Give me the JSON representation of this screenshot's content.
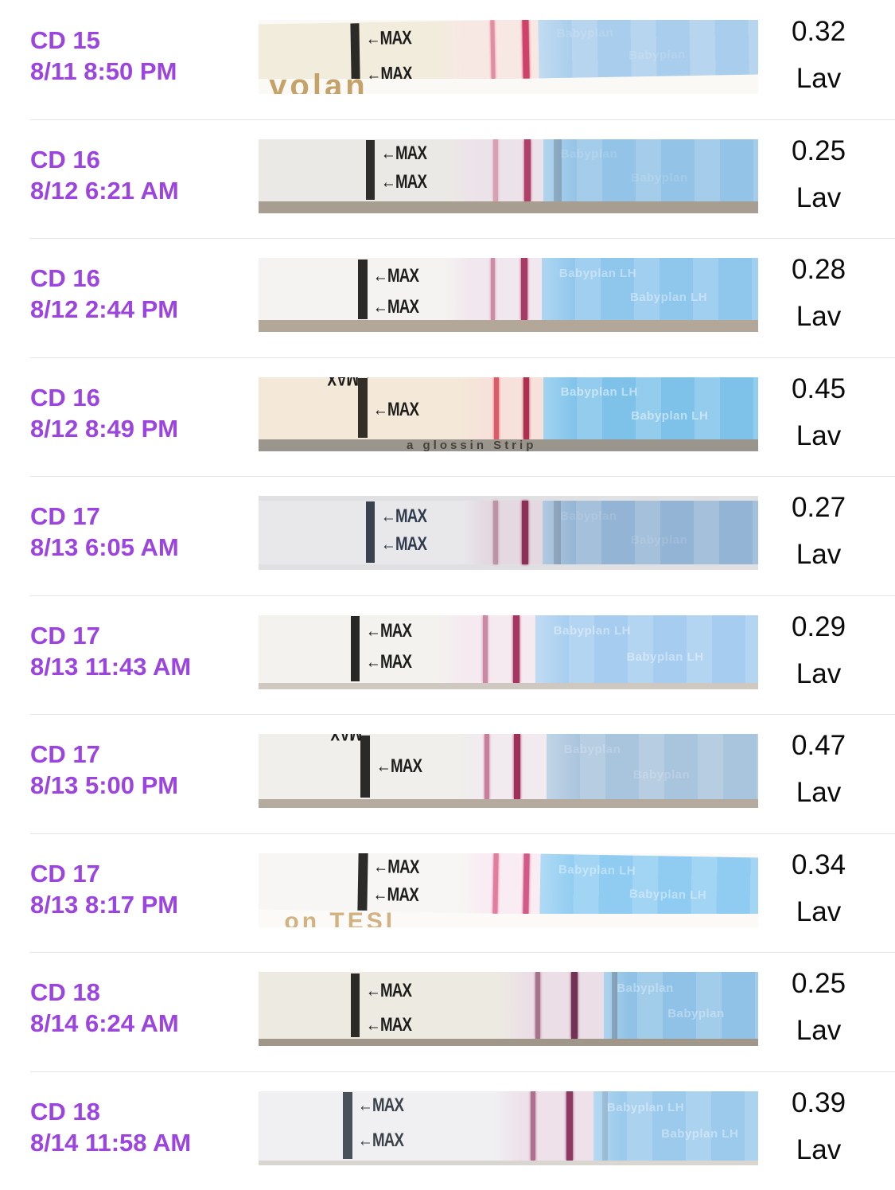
{
  "colors": {
    "accent_purple": "#9c44e0",
    "value_text": "#0b0b0b",
    "divider": "#e4e4e6",
    "background": "#ffffff"
  },
  "rows": [
    {
      "cycle_day": "CD 15",
      "datetime": "8/11 8:50 PM",
      "value": "0.32",
      "unit": "Lav",
      "strip": {
        "body": "#f2ecdd",
        "bar": "#2b2a26",
        "bar_x": "19%",
        "membrane": "#f8e8e4",
        "membrane_x": "36%",
        "test_x": "46.5%",
        "test_color": "#e28da1",
        "ctrl_x": "52.8%",
        "ctrl_color": "#ce4168",
        "blue_x": "56%",
        "blue": "#a9cdec",
        "photo_bg": "#faf9f6",
        "strip_h": "80%",
        "band": "#faf9f6",
        "band_text": "volan",
        "band_text_color": "#c5a268",
        "band_text_size": "40px",
        "band_text_left": "3%",
        "band_text_bottom": "-8px",
        "tilt": "-1deg",
        "max_top": "12%",
        "max_bot": "72%",
        "max_label": "←MAX",
        "blue_text": "Babyplan",
        "blue_text_opacity": "0.15",
        "smudge_opacity": "0"
      }
    },
    {
      "cycle_day": "CD 16",
      "datetime": "8/12 6:21 AM",
      "value": "0.25",
      "unit": "Lav",
      "strip": {
        "body": "#ebe9e5",
        "bar": "#2e2d2b",
        "bar_x": "22%",
        "membrane": "#ece3ea",
        "membrane_x": "38%",
        "test_x": "47%",
        "test_color": "#d9a0b4",
        "ctrl_x": "53.2%",
        "ctrl_color": "#b03f68",
        "blue_x": "56.8%",
        "blue": "#93c3e6",
        "photo_bg": "#efede9",
        "strip_h": "84%",
        "band": "#a79d90",
        "tilt": "0deg",
        "max_top": "8%",
        "max_bot": "54%",
        "max_label": "←MAX",
        "blue_text": "Babyplan",
        "blue_text_opacity": "0.15",
        "smudge_opacity": "0.35"
      }
    },
    {
      "cycle_day": "CD 16",
      "datetime": "8/12 2:44 PM",
      "value": "0.28",
      "unit": "Lav",
      "strip": {
        "body": "#f5f3f1",
        "bar": "#2b2a28",
        "bar_x": "20.5%",
        "membrane": "#f1e7ee",
        "membrane_x": "37%",
        "test_x": "46.5%",
        "test_color": "#cf8aa4",
        "ctrl_x": "52.5%",
        "ctrl_color": "#a83a66",
        "blue_x": "56.5%",
        "blue": "#8fc6ec",
        "photo_bg": "#f4f2ef",
        "strip_h": "84%",
        "band": "#b3a79a",
        "tilt": "0deg",
        "max_top": "14%",
        "max_bot": "64%",
        "max_label": "←MAX",
        "blue_text": "Babyplan LH",
        "blue_text_opacity": "0.4",
        "smudge_opacity": "0"
      }
    },
    {
      "cycle_day": "CD 16",
      "datetime": "8/12 8:49 PM",
      "value": "0.45",
      "unit": "Lav",
      "strip": {
        "body": "#f4e9d8",
        "bar": "#332f28",
        "bar_x": "20.5%",
        "membrane": "#f6e2da",
        "membrane_x": "40%",
        "test_x": "47.2%",
        "test_color": "#dd5a68",
        "ctrl_x": "52.9%",
        "ctrl_color": "#ae2f50",
        "blue_x": "56.8%",
        "blue": "#7ec2ea",
        "photo_bg": "#f1e6d6",
        "strip_h": "84%",
        "band": "#9a968e",
        "band_text": "a glossin      Strip",
        "band_text_color": "#46433c",
        "band_text_size": "15px",
        "band_text_left": "30%",
        "band_text_bottom": "2px",
        "tilt": "0deg",
        "max_top": "-14%",
        "max_bot": "38%",
        "max_flip_top": true,
        "max_label": "←MAX",
        "blue_text": "Babyplan LH",
        "blue_text_opacity": "0.5",
        "smudge_opacity": "0"
      }
    },
    {
      "cycle_day": "CD 17",
      "datetime": "8/13 6:05 AM",
      "value": "0.27",
      "unit": "Lav",
      "strip": {
        "body": "#e8e8eb",
        "bar": "#39414f",
        "bar_x": "22%",
        "membrane": "#e4d9e1",
        "membrane_x": "41%",
        "test_x": "47%",
        "test_color": "#bd93a6",
        "ctrl_x": "52.7%",
        "ctrl_color": "#8c3058",
        "blue_x": "56.7%",
        "blue": "#93b4d4",
        "photo_bg": "#e0e0e3",
        "strip_top": "6%",
        "strip_h": "86%",
        "tilt": "0deg",
        "max_top": "10%",
        "max_bot": "54%",
        "max_color": "#2f3a4d",
        "max_label": "←MAX",
        "blue_text": "Babyplan",
        "blue_text_opacity": "0.12",
        "smudge_opacity": "0.3"
      }
    },
    {
      "cycle_day": "CD 17",
      "datetime": "8/13 11:43 AM",
      "value": "0.29",
      "unit": "Lav",
      "strip": {
        "body": "#f3f2ef",
        "bar": "#272725",
        "bar_x": "19%",
        "membrane": "#f4eaf0",
        "membrane_x": "36%",
        "test_x": "45%",
        "test_color": "#ca88a2",
        "ctrl_x": "51%",
        "ctrl_color": "#a63562",
        "blue_x": "55.3%",
        "blue": "#a6cdef",
        "photo_bg": "#eae7e2",
        "strip_h": "92%",
        "band": "#cfc8c0",
        "tilt": "0deg",
        "max_top": "10%",
        "max_bot": "56%",
        "max_label": "←MAX",
        "blue_text": "Babyplan LH",
        "blue_text_opacity": "0.4",
        "smudge_opacity": "0"
      }
    },
    {
      "cycle_day": "CD 17",
      "datetime": "8/13 5:00 PM",
      "value": "0.47",
      "unit": "Lav",
      "strip": {
        "body": "#f0efec",
        "bar": "#2a2a28",
        "bar_x": "21%",
        "membrane": "#f1ebf0",
        "membrane_x": "40%",
        "test_x": "45.3%",
        "test_color": "#c67e9b",
        "ctrl_x": "51.1%",
        "ctrl_color": "#9e3058",
        "blue_x": "57.5%",
        "blue": "#a9c4dd",
        "photo_bg": "#efedea",
        "strip_h": "88%",
        "band": "#b4aa9d",
        "tilt": "0deg",
        "max_top": "-16%",
        "max_bot": "36%",
        "max_flip_top": true,
        "max_label": "←MAX",
        "blue_text": "Babyplan",
        "blue_text_opacity": "0.2",
        "smudge_opacity": "0"
      }
    },
    {
      "cycle_day": "CD 17",
      "datetime": "8/13 8:17 PM",
      "value": "0.34",
      "unit": "Lav",
      "strip": {
        "body": "#f7f6f4",
        "bar": "#2c2b29",
        "bar_x": "20.5%",
        "membrane": "#f9edf3",
        "membrane_x": "40%",
        "test_x": "47%",
        "test_color": "#e27d9e",
        "ctrl_x": "52.9%",
        "ctrl_color": "#d15a88",
        "blue_x": "56.3%",
        "blue": "#90ccf1",
        "photo_bg": "#fbfaf8",
        "strip_h": "82%",
        "band": "#fbfaf8",
        "band_text": "on TESI",
        "band_text_color": "#d3b282",
        "band_text_size": "30px",
        "band_text_left": "6%",
        "band_text_bottom": "-6px",
        "tilt": "1deg",
        "max_top": "10%",
        "max_bot": "56%",
        "max_label": "←MAX",
        "blue_text": "Babyplan LH",
        "blue_text_opacity": "0.4",
        "smudge_opacity": "0"
      }
    },
    {
      "cycle_day": "CD 18",
      "datetime": "8/14 6:24 AM",
      "value": "0.25",
      "unit": "Lav",
      "strip": {
        "body": "#edeae2",
        "bar": "#2b2a27",
        "bar_x": "19%",
        "membrane": "#ebdee7",
        "membrane_x": "48%",
        "test_x": "55.3%",
        "test_color": "#a8728d",
        "ctrl_x": "62.4%",
        "ctrl_color": "#743156",
        "blue_x": "68.8%",
        "blue": "#8fc2e6",
        "photo_bg": "#eceade",
        "strip_h": "90%",
        "band": "#a1968a",
        "tilt": "0deg",
        "max_top": "14%",
        "max_bot": "66%",
        "max_label": "←MAX",
        "blue_text": "Babyplan",
        "blue_text_opacity": "0.35",
        "smudge_opacity": "0.4"
      }
    },
    {
      "cycle_day": "CD 18",
      "datetime": "8/14 11:58 AM",
      "value": "0.39",
      "unit": "Lav",
      "strip": {
        "body": "#f0f0f2",
        "bar": "#49525a",
        "bar_x": "17.5%",
        "membrane": "#eee1ea",
        "membrane_x": "47%",
        "test_x": "54.4%",
        "test_color": "#b06f8e",
        "ctrl_x": "61.4%",
        "ctrl_color": "#8c3a62",
        "blue_x": "66.7%",
        "blue": "#9bcaec",
        "photo_bg": "#f2f2f4",
        "strip_h": "94%",
        "band": "#d9d5d0",
        "tilt": "0deg",
        "max_top": "8%",
        "max_bot": "58%",
        "max_color": "#3a4149",
        "max_label": "←MAX",
        "blue_text": "Babyplan LH",
        "blue_text_opacity": "0.4",
        "smudge_opacity": "0.2"
      }
    }
  ]
}
